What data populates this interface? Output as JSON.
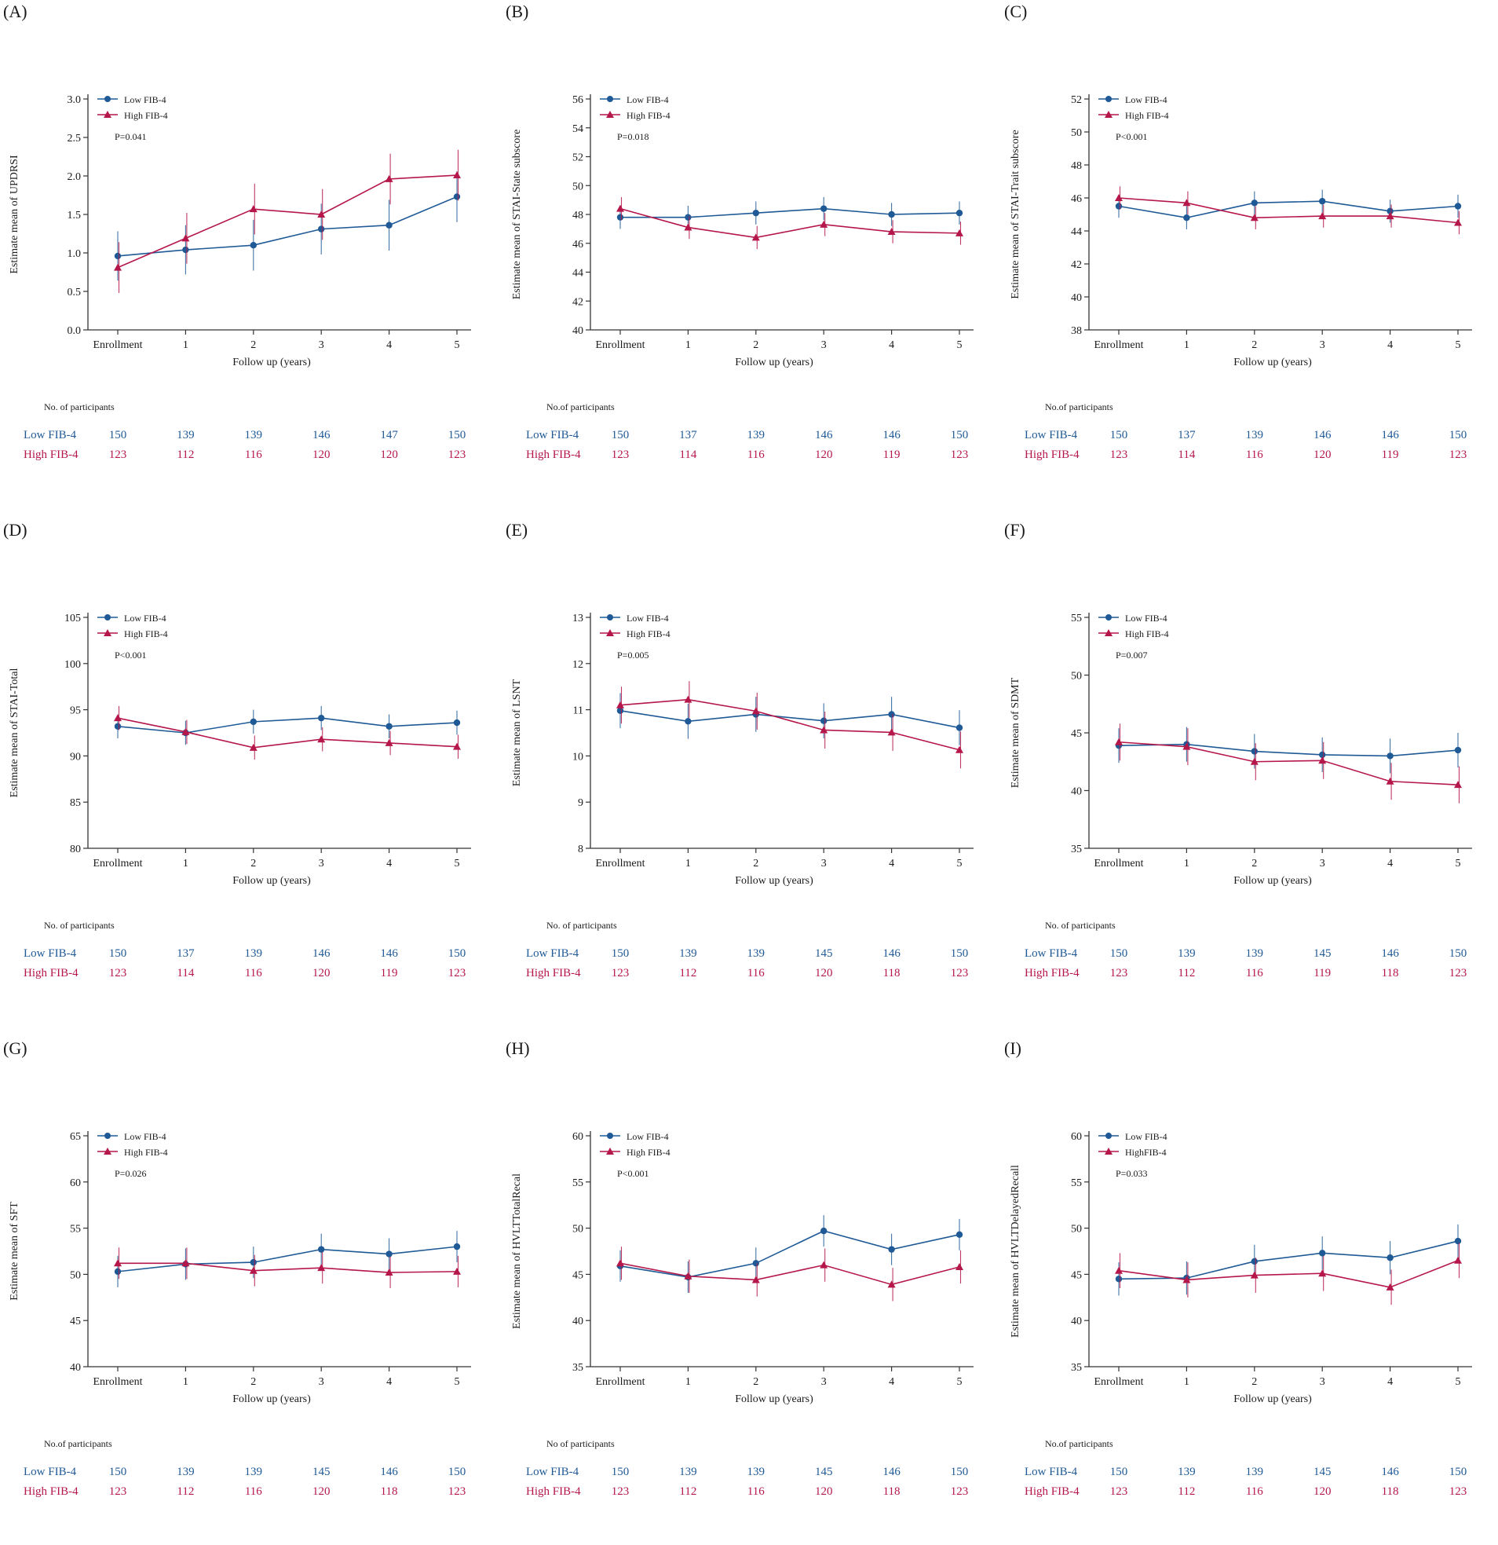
{
  "figure": {
    "xlabel": "Follow up (years)",
    "categories": [
      "Enrollment",
      "1",
      "2",
      "3",
      "4",
      "5"
    ],
    "colors": {
      "low": "#1f5a96",
      "high": "#b5174a",
      "axis": "#333333"
    }
  },
  "chart_data": [
    {
      "type": "line",
      "panel": "(A)",
      "title": "(A)",
      "ylabel": "Estimate mean of UPDRSI",
      "xlabel": "Follow up (years)",
      "ylim": [
        0.0,
        3.0
      ],
      "yticks": [
        "0.0",
        "0.5",
        "1.0",
        "1.5",
        "2.0",
        "2.5",
        "3.0"
      ],
      "categories": [
        "Enrollment",
        "1",
        "2",
        "3",
        "4",
        "5"
      ],
      "pvalue": "P=0.041",
      "series": [
        {
          "name": "Low FIB-4",
          "values": [
            0.96,
            1.04,
            1.1,
            1.31,
            1.36,
            1.73
          ],
          "errors": [
            0.32,
            0.32,
            0.33,
            0.33,
            0.33,
            0.33
          ]
        },
        {
          "name": "High FIB-4",
          "values": [
            0.81,
            1.19,
            1.57,
            1.5,
            1.96,
            2.01
          ],
          "errors": [
            0.33,
            0.33,
            0.33,
            0.33,
            0.33,
            0.33
          ]
        }
      ],
      "participants": {
        "header": "No. of participants",
        "rows": [
          {
            "label": "Low FIB-4",
            "counts": [
              "150",
              "139",
              "139",
              "146",
              "147",
              "150"
            ]
          },
          {
            "label": "High FIB-4",
            "counts": [
              "123",
              "112",
              "116",
              "120",
              "120",
              "123"
            ]
          }
        ]
      }
    },
    {
      "type": "line",
      "panel": "(B)",
      "title": "(B)",
      "ylabel": "Estimate mean of STAI-State subscore",
      "xlabel": "Follow up (years)",
      "ylim": [
        40,
        56
      ],
      "yticks": [
        "40",
        "42",
        "44",
        "46",
        "48",
        "50",
        "52",
        "54",
        "56"
      ],
      "categories": [
        "Enrollment",
        "1",
        "2",
        "3",
        "4",
        "5"
      ],
      "pvalue": "P=0.018",
      "series": [
        {
          "name": "Low FIB-4",
          "values": [
            47.8,
            47.8,
            48.1,
            48.4,
            48.0,
            48.1
          ],
          "errors": [
            0.8,
            0.8,
            0.8,
            0.8,
            0.8,
            0.8
          ]
        },
        {
          "name": "High FIB-4",
          "values": [
            48.4,
            47.1,
            46.4,
            47.3,
            46.8,
            46.7
          ],
          "errors": [
            0.8,
            0.8,
            0.8,
            0.8,
            0.8,
            0.8
          ]
        }
      ],
      "participants": {
        "header": "No.of participants",
        "rows": [
          {
            "label": "Low FIB-4",
            "counts": [
              "150",
              "137",
              "139",
              "146",
              "146",
              "150"
            ]
          },
          {
            "label": "High FIB-4",
            "counts": [
              "123",
              "114",
              "116",
              "120",
              "119",
              "123"
            ]
          }
        ]
      }
    },
    {
      "type": "line",
      "panel": "(C)",
      "title": "(C)",
      "ylabel": "Estimate mean of STAI-Trait subscore",
      "xlabel": "Follow up (years)",
      "ylim": [
        38,
        52
      ],
      "yticks": [
        "38",
        "40",
        "42",
        "44",
        "46",
        "48",
        "50",
        "52"
      ],
      "categories": [
        "Enrollment",
        "1",
        "2",
        "3",
        "4",
        "5"
      ],
      "pvalue": "P<0.001",
      "series": [
        {
          "name": "Low FIB-4",
          "values": [
            45.5,
            44.8,
            45.7,
            45.8,
            45.2,
            45.5
          ],
          "errors": [
            0.7,
            0.7,
            0.7,
            0.7,
            0.7,
            0.7
          ]
        },
        {
          "name": "High FIB-4",
          "values": [
            46.0,
            45.7,
            44.8,
            44.9,
            44.9,
            44.5
          ],
          "errors": [
            0.7,
            0.7,
            0.7,
            0.7,
            0.7,
            0.7
          ]
        }
      ],
      "participants": {
        "header": "No.of participants",
        "rows": [
          {
            "label": "Low FIB-4",
            "counts": [
              "150",
              "137",
              "139",
              "146",
              "146",
              "150"
            ]
          },
          {
            "label": "High FIB-4",
            "counts": [
              "123",
              "114",
              "116",
              "120",
              "119",
              "123"
            ]
          }
        ]
      }
    },
    {
      "type": "line",
      "panel": "(D)",
      "title": "(D)",
      "ylabel": "Estimate mean of STAI-Total",
      "xlabel": "Follow up (years)",
      "ylim": [
        80,
        105
      ],
      "yticks": [
        "80",
        "85",
        "90",
        "95",
        "100",
        "105"
      ],
      "categories": [
        "Enrollment",
        "1",
        "2",
        "3",
        "4",
        "5"
      ],
      "pvalue": "P<0.001",
      "series": [
        {
          "name": "Low FIB-4",
          "values": [
            93.2,
            92.5,
            93.7,
            94.1,
            93.2,
            93.6
          ],
          "errors": [
            1.3,
            1.3,
            1.3,
            1.3,
            1.3,
            1.3
          ]
        },
        {
          "name": "High FIB-4",
          "values": [
            94.1,
            92.6,
            90.9,
            91.8,
            91.4,
            91.0
          ],
          "errors": [
            1.3,
            1.3,
            1.3,
            1.3,
            1.3,
            1.3
          ]
        }
      ],
      "participants": {
        "header": "No. of participants",
        "rows": [
          {
            "label": "Low FIB-4",
            "counts": [
              "150",
              "137",
              "139",
              "146",
              "146",
              "150"
            ]
          },
          {
            "label": "High FIB-4",
            "counts": [
              "123",
              "114",
              "116",
              "120",
              "119",
              "123"
            ]
          }
        ]
      }
    },
    {
      "type": "line",
      "panel": "(E)",
      "title": "(E)",
      "ylabel": "Estimate mean of LSNT",
      "xlabel": "Follow up (years)",
      "ylim": [
        8,
        13
      ],
      "yticks": [
        "8",
        "9",
        "10",
        "11",
        "12",
        "13"
      ],
      "categories": [
        "Enrollment",
        "1",
        "2",
        "3",
        "4",
        "5"
      ],
      "pvalue": "P=0.005",
      "series": [
        {
          "name": "Low FIB-4",
          "values": [
            10.98,
            10.75,
            10.9,
            10.76,
            10.9,
            10.61
          ],
          "errors": [
            0.38,
            0.38,
            0.38,
            0.38,
            0.38,
            0.38
          ]
        },
        {
          "name": "High FIB-4",
          "values": [
            11.1,
            11.22,
            10.97,
            10.56,
            10.51,
            10.13
          ],
          "errors": [
            0.4,
            0.4,
            0.4,
            0.4,
            0.4,
            0.4
          ]
        }
      ],
      "participants": {
        "header": "No.  of participants",
        "rows": [
          {
            "label": "Low FIB-4",
            "counts": [
              "150",
              "139",
              "139",
              "145",
              "146",
              "150"
            ]
          },
          {
            "label": "High FIB-4",
            "counts": [
              "123",
              "112",
              "116",
              "120",
              "118",
              "123"
            ]
          }
        ]
      }
    },
    {
      "type": "line",
      "panel": "(F)",
      "title": "(F)",
      "ylabel": "Estimate mean of SDMT",
      "xlabel": "Follow up (years)",
      "ylim": [
        35,
        55
      ],
      "yticks": [
        "35",
        "40",
        "45",
        "50",
        "55"
      ],
      "categories": [
        "Enrollment",
        "1",
        "2",
        "3",
        "4",
        "5"
      ],
      "pvalue": "P=0.007",
      "series": [
        {
          "name": "Low FIB-4",
          "values": [
            43.9,
            44.0,
            43.4,
            43.1,
            43.0,
            43.5
          ],
          "errors": [
            1.5,
            1.5,
            1.5,
            1.5,
            1.5,
            1.5
          ]
        },
        {
          "name": "High FIB-4",
          "values": [
            44.2,
            43.8,
            42.5,
            42.6,
            40.8,
            40.5
          ],
          "errors": [
            1.6,
            1.6,
            1.6,
            1.6,
            1.6,
            1.6
          ]
        }
      ],
      "participants": {
        "header": "No.  of participants",
        "rows": [
          {
            "label": "Low FIB-4",
            "counts": [
              "150",
              "139",
              "139",
              "145",
              "146",
              "150"
            ]
          },
          {
            "label": "High FIB-4",
            "counts": [
              "123",
              "112",
              "116",
              "119",
              "118",
              "123"
            ]
          }
        ]
      }
    },
    {
      "type": "line",
      "panel": "(G)",
      "title": "(G)",
      "ylabel": "Estimate mean of SFT",
      "xlabel": "Follow up (years)",
      "ylim": [
        40,
        65
      ],
      "yticks": [
        "40",
        "45",
        "50",
        "55",
        "60",
        "65"
      ],
      "categories": [
        "Enrollment",
        "1",
        "2",
        "3",
        "4",
        "5"
      ],
      "pvalue": "P=0.026",
      "series": [
        {
          "name": "Low FIB-4",
          "values": [
            50.3,
            51.1,
            51.3,
            52.7,
            52.2,
            53.0
          ],
          "errors": [
            1.7,
            1.7,
            1.7,
            1.7,
            1.7,
            1.7
          ]
        },
        {
          "name": "High FIB-4",
          "values": [
            51.2,
            51.2,
            50.4,
            50.7,
            50.2,
            50.3
          ],
          "errors": [
            1.7,
            1.7,
            1.7,
            1.7,
            1.7,
            1.7
          ]
        }
      ],
      "participants": {
        "header": "No.of participants",
        "rows": [
          {
            "label": "Low FIB-4",
            "counts": [
              "150",
              "139",
              "139",
              "145",
              "146",
              "150"
            ]
          },
          {
            "label": "High FIB-4",
            "counts": [
              "123",
              "112",
              "116",
              "120",
              "118",
              "123"
            ]
          }
        ]
      }
    },
    {
      "type": "line",
      "panel": "(H)",
      "title": "(H)",
      "ylabel": "Estimate mean of HVLTTotalRecal",
      "xlabel": "Follow up (years)",
      "ylim": [
        35,
        60
      ],
      "yticks": [
        "35",
        "40",
        "45",
        "50",
        "55",
        "60"
      ],
      "categories": [
        "Enrollment",
        "1",
        "2",
        "3",
        "4",
        "5"
      ],
      "pvalue": "P<0.001",
      "series": [
        {
          "name": "Low FIB-4",
          "values": [
            45.9,
            44.7,
            46.2,
            49.7,
            47.7,
            49.3
          ],
          "errors": [
            1.7,
            1.7,
            1.7,
            1.7,
            1.7,
            1.7
          ]
        },
        {
          "name": "High FIB-4",
          "values": [
            46.2,
            44.8,
            44.4,
            46.0,
            43.9,
            45.8
          ],
          "errors": [
            1.8,
            1.8,
            1.8,
            1.8,
            1.8,
            1.8
          ]
        }
      ],
      "participants": {
        "header": "No  of participants",
        "rows": [
          {
            "label": "Low FIB-4",
            "counts": [
              "150",
              "139",
              "139",
              "145",
              "146",
              "150"
            ]
          },
          {
            "label": "High FIB-4",
            "counts": [
              "123",
              "112",
              "116",
              "120",
              "118",
              "123"
            ]
          }
        ]
      }
    },
    {
      "type": "line",
      "panel": "(I)",
      "title": "(I)",
      "ylabel": "Estimate mean of HVLTDelayedRecall",
      "xlabel": "Follow up (years)",
      "ylim": [
        35,
        60
      ],
      "yticks": [
        "35",
        "40",
        "45",
        "50",
        "55",
        "60"
      ],
      "categories": [
        "Enrollment",
        "1",
        "2",
        "3",
        "4",
        "5"
      ],
      "pvalue": "P=0.033",
      "series": [
        {
          "name": "Low FIB-4",
          "values": [
            44.5,
            44.6,
            46.4,
            47.3,
            46.8,
            48.6
          ],
          "errors": [
            1.8,
            1.8,
            1.8,
            1.8,
            1.8,
            1.8
          ]
        },
        {
          "name": "HighFIB-4",
          "values": [
            45.4,
            44.4,
            44.9,
            45.1,
            43.6,
            46.5
          ],
          "errors": [
            1.9,
            1.9,
            1.9,
            1.9,
            1.9,
            1.9
          ]
        }
      ],
      "participants": {
        "header": "No.of participants",
        "rows": [
          {
            "label": "Low FIB-4",
            "counts": [
              "150",
              "139",
              "139",
              "145",
              "146",
              "150"
            ]
          },
          {
            "label": "High FIB-4",
            "counts": [
              "123",
              "112",
              "116",
              "120",
              "118",
              "123"
            ]
          }
        ]
      }
    }
  ]
}
